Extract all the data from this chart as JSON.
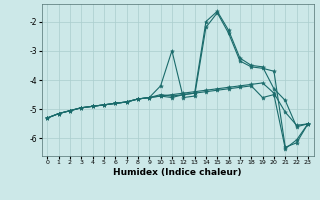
{
  "title": "",
  "xlabel": "Humidex (Indice chaleur)",
  "bg_color": "#cce8e8",
  "line_color": "#1a6b6b",
  "grid_color": "#aacece",
  "xlim": [
    -0.5,
    23.5
  ],
  "ylim": [
    -6.6,
    -1.4
  ],
  "yticks": [
    -6,
    -5,
    -4,
    -3,
    -2
  ],
  "xticks": [
    0,
    1,
    2,
    3,
    4,
    5,
    6,
    7,
    8,
    9,
    10,
    11,
    12,
    13,
    14,
    15,
    16,
    17,
    18,
    19,
    20,
    21,
    22,
    23
  ],
  "series": [
    {
      "x": [
        0,
        1,
        2,
        3,
        4,
        5,
        6,
        7,
        8,
        9,
        10,
        11,
        12,
        13,
        14,
        15,
        16,
        17,
        18,
        19,
        20,
        21,
        22,
        23
      ],
      "y": [
        -5.3,
        -5.15,
        -5.05,
        -4.95,
        -4.9,
        -4.85,
        -4.8,
        -4.75,
        -4.65,
        -4.6,
        -4.55,
        -4.5,
        -4.45,
        -4.4,
        -4.35,
        -4.3,
        -4.25,
        -4.2,
        -4.15,
        -4.1,
        -4.45,
        -5.1,
        -5.55,
        -5.5
      ]
    },
    {
      "x": [
        0,
        1,
        2,
        3,
        4,
        5,
        6,
        7,
        8,
        9,
        10,
        11,
        12,
        13,
        14,
        15,
        16,
        17,
        18,
        19,
        20,
        21,
        22,
        23
      ],
      "y": [
        -5.3,
        -5.15,
        -5.05,
        -4.95,
        -4.9,
        -4.85,
        -4.8,
        -4.75,
        -4.65,
        -4.6,
        -4.2,
        -3.0,
        -4.6,
        -4.55,
        -2.2,
        -1.7,
        -2.4,
        -3.35,
        -3.55,
        -3.6,
        -3.7,
        -6.3,
        -6.15,
        -5.5
      ]
    },
    {
      "x": [
        0,
        1,
        2,
        3,
        4,
        5,
        6,
        7,
        8,
        9,
        10,
        11,
        12,
        13,
        14,
        15,
        16,
        17,
        18,
        19,
        20,
        21,
        22,
        23
      ],
      "y": [
        -5.3,
        -5.15,
        -5.05,
        -4.95,
        -4.9,
        -4.85,
        -4.8,
        -4.75,
        -4.65,
        -4.6,
        -4.5,
        -4.55,
        -4.5,
        -4.45,
        -2.0,
        -1.65,
        -2.3,
        -3.25,
        -3.5,
        -3.55,
        -4.3,
        -4.7,
        -5.6,
        -5.5
      ]
    },
    {
      "x": [
        0,
        1,
        2,
        3,
        4,
        5,
        6,
        7,
        8,
        9,
        10,
        11,
        12,
        13,
        14,
        15,
        16,
        17,
        18,
        19,
        20,
        21,
        22,
        23
      ],
      "y": [
        -5.3,
        -5.15,
        -5.05,
        -4.95,
        -4.9,
        -4.85,
        -4.8,
        -4.75,
        -4.65,
        -4.6,
        -4.55,
        -4.6,
        -4.5,
        -4.45,
        -4.4,
        -4.35,
        -4.3,
        -4.25,
        -4.2,
        -4.6,
        -4.5,
        -6.35,
        -6.05,
        -5.5
      ]
    }
  ]
}
